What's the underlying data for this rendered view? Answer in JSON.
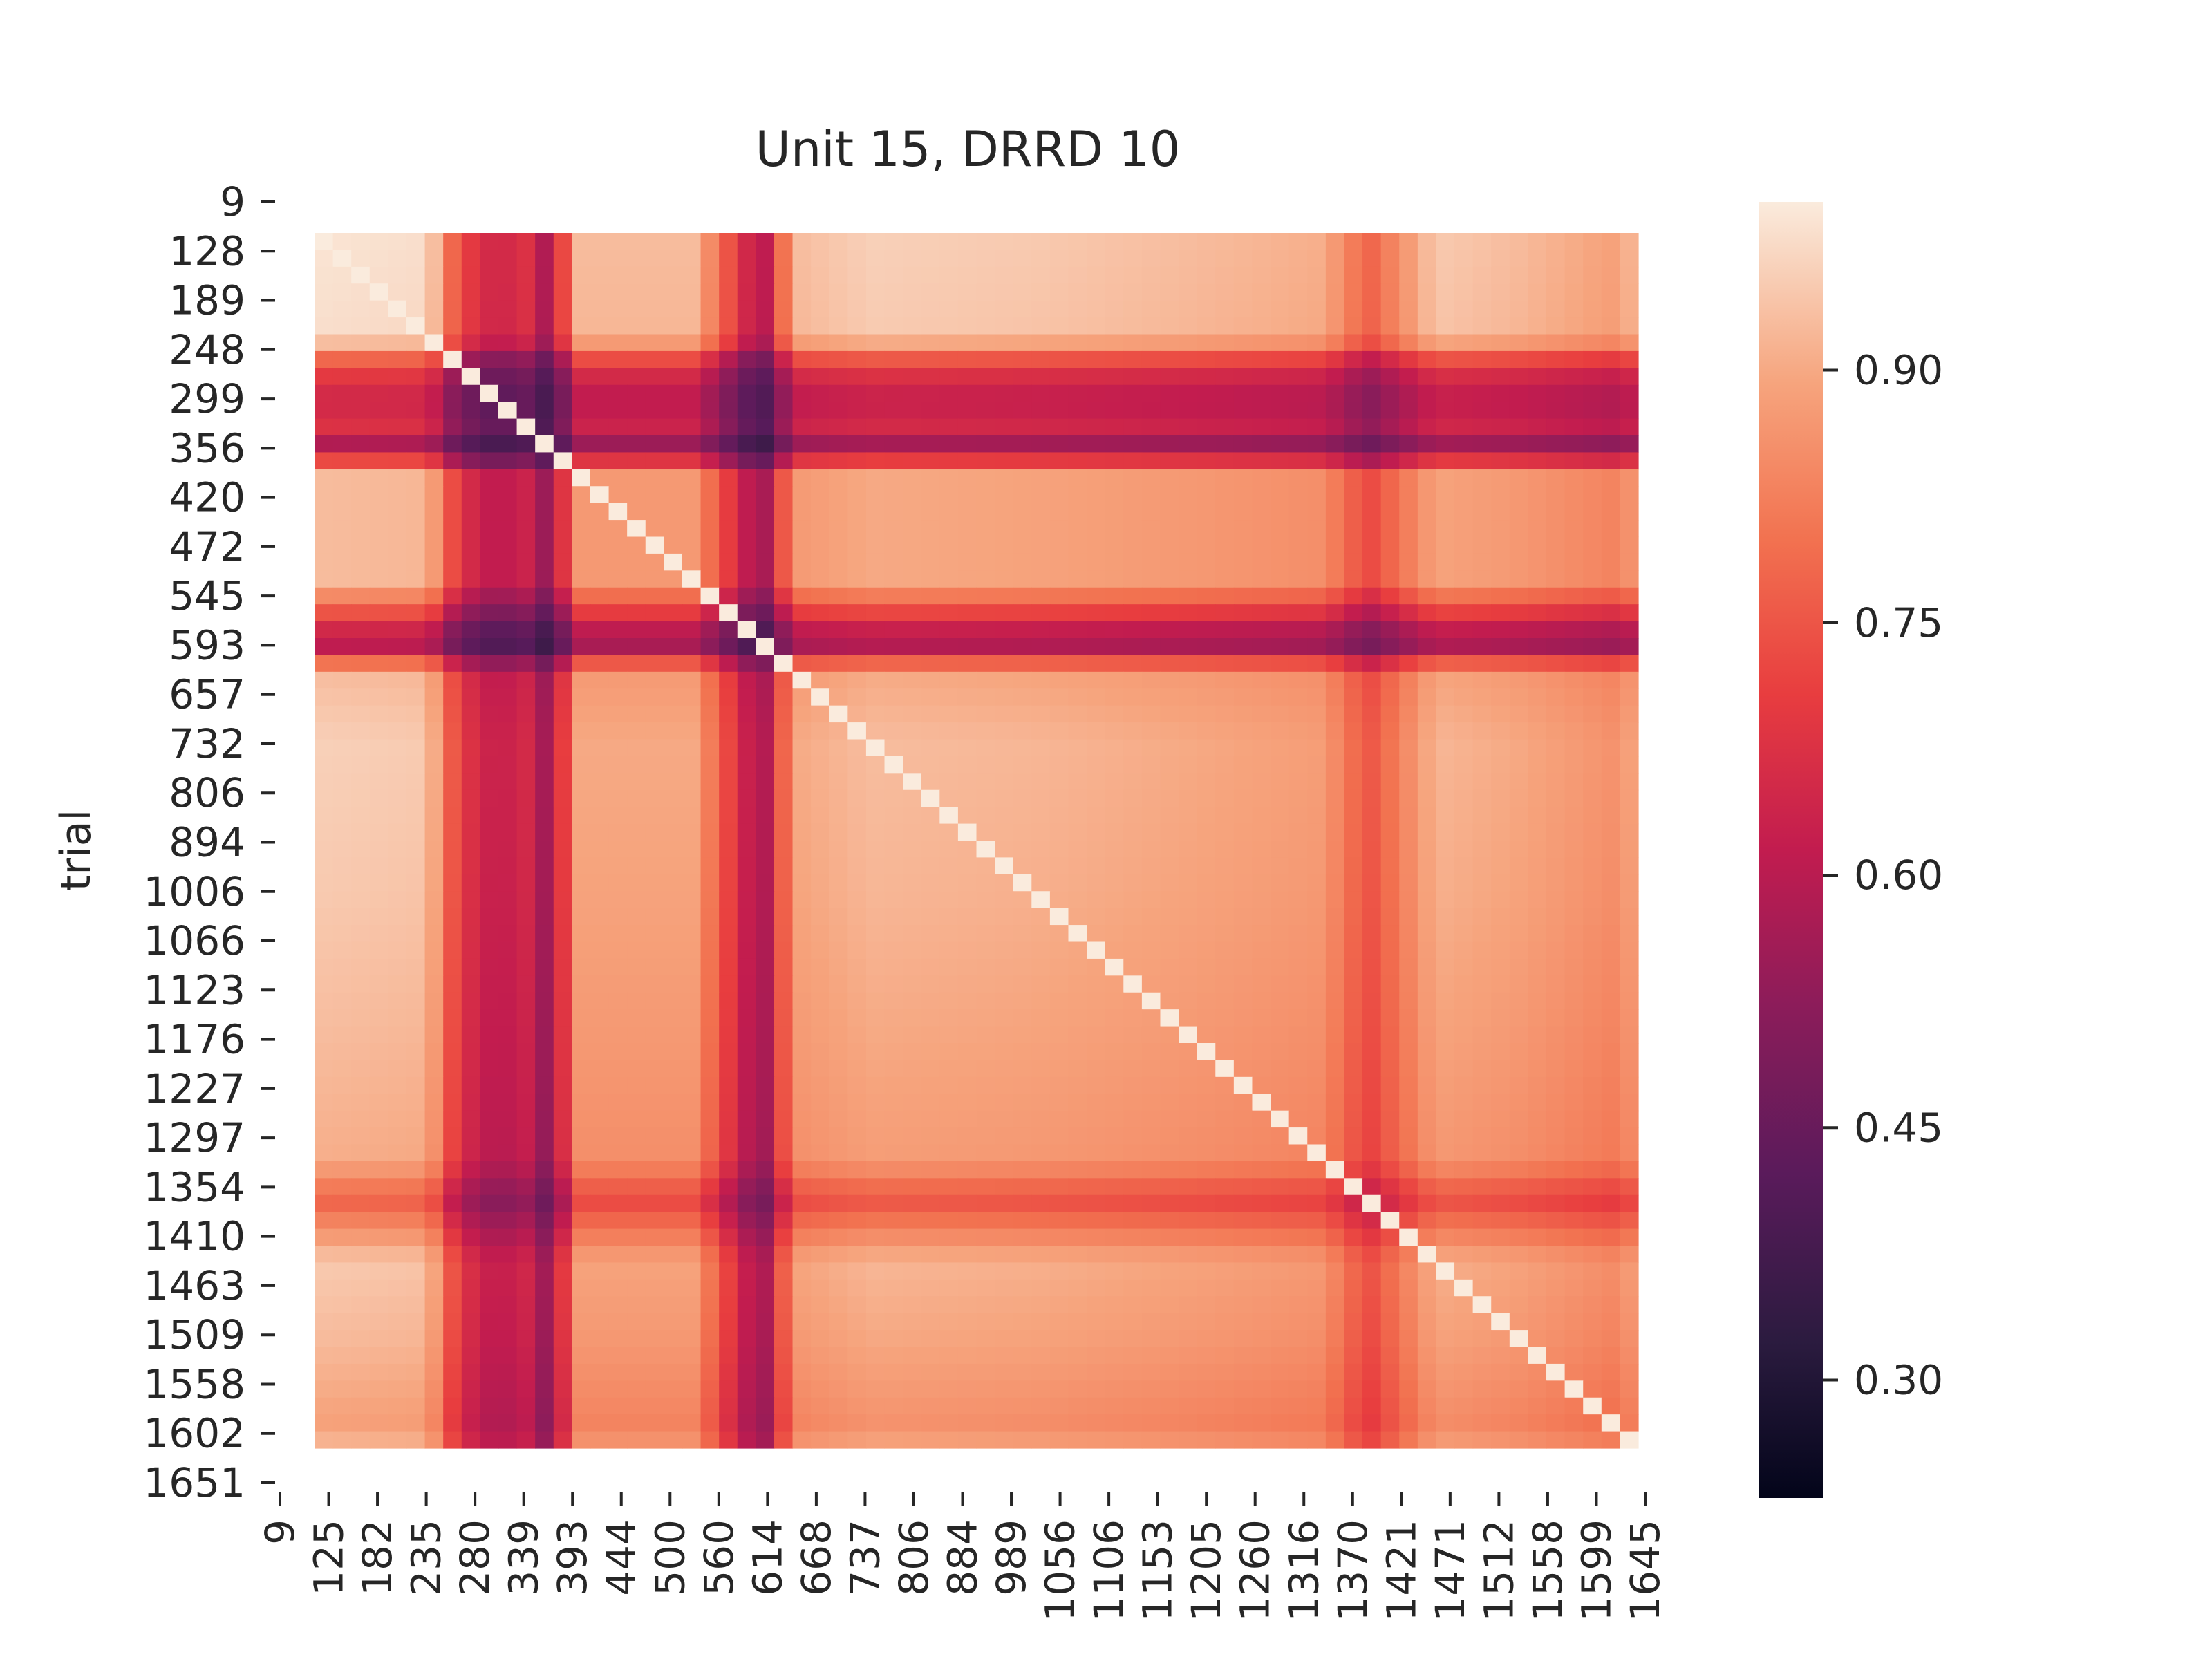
{
  "chart_data": {
    "type": "heatmap",
    "title": "Unit 15, DRRD 10",
    "xlabel": "",
    "ylabel": "trial",
    "x_tick_labels": [
      "9",
      "125",
      "182",
      "235",
      "280",
      "339",
      "393",
      "444",
      "500",
      "560",
      "614",
      "668",
      "737",
      "806",
      "884",
      "989",
      "1056",
      "1106",
      "1153",
      "1205",
      "1260",
      "1316",
      "1370",
      "1421",
      "1471",
      "1512",
      "1558",
      "1599",
      "1645"
    ],
    "y_tick_labels": [
      "9",
      "128",
      "189",
      "248",
      "299",
      "356",
      "420",
      "472",
      "545",
      "593",
      "657",
      "732",
      "806",
      "894",
      "1006",
      "1066",
      "1123",
      "1176",
      "1227",
      "1297",
      "1354",
      "1410",
      "1463",
      "1509",
      "1558",
      "1602",
      "1651"
    ],
    "colorbar": {
      "colormap": "rocket",
      "range": [
        0.23,
        1.0
      ],
      "ticks": [
        0.3,
        0.45,
        0.6,
        0.75,
        0.9
      ],
      "tick_labels": [
        "0.30",
        "0.45",
        "0.60",
        "0.75",
        "0.90"
      ]
    },
    "description_of_values": "Symmetric trial-by-trial correlation matrix, diagonal = 1.0",
    "row_col_profile": {
      "positions_data_units": [
        9,
        150,
        189,
        235,
        270,
        299,
        339,
        480,
        545,
        575,
        600,
        700,
        900,
        1100,
        1260,
        1316,
        1400,
        1500,
        1620,
        1651
      ],
      "profile_values": [
        0.96,
        0.95,
        0.7,
        0.62,
        0.66,
        0.55,
        0.9,
        0.9,
        0.63,
        0.58,
        0.9,
        0.93,
        0.92,
        0.9,
        0.88,
        0.75,
        0.92,
        0.9,
        0.86,
        0.9
      ]
    },
    "value_range": [
      0.23,
      1.0
    ]
  }
}
